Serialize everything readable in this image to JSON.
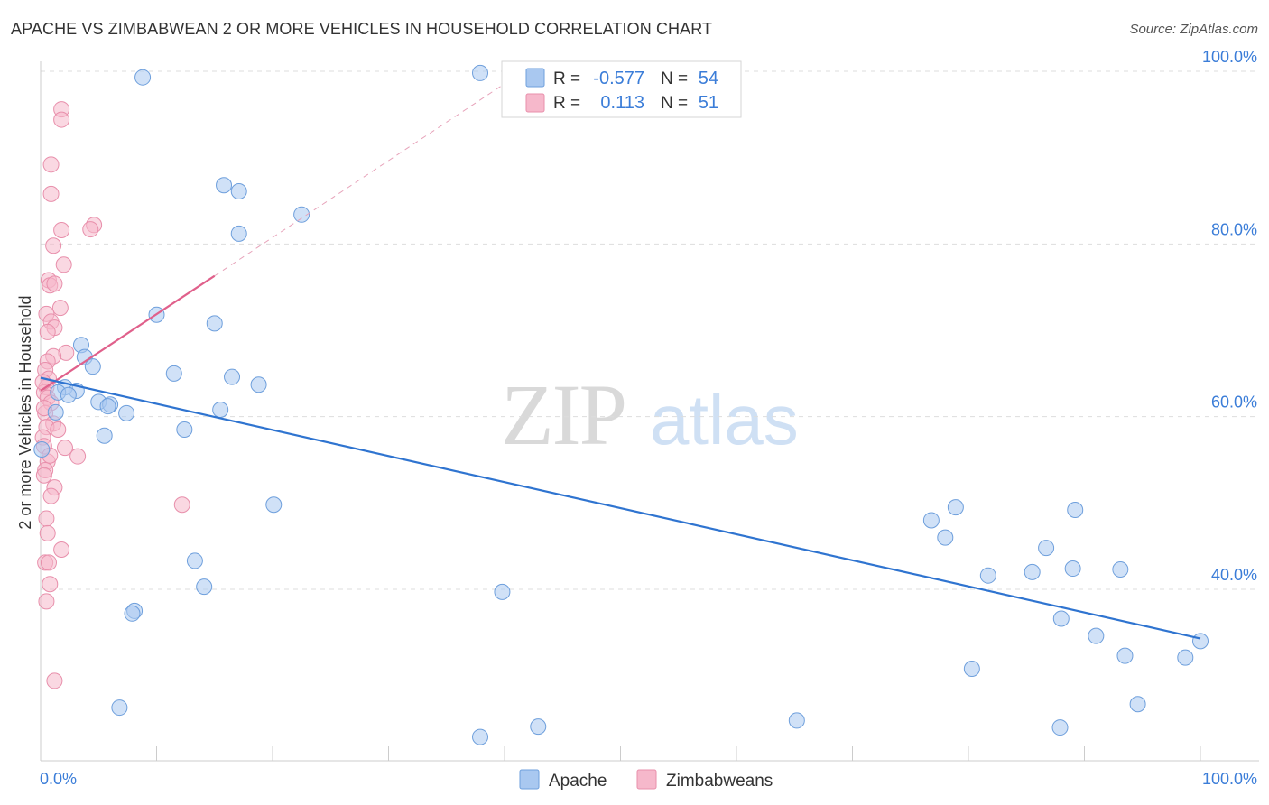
{
  "chart_data": {
    "type": "scatter",
    "title": "APACHE VS ZIMBABWEAN 2 OR MORE VEHICLES IN HOUSEHOLD CORRELATION CHART",
    "source": "Source: ZipAtlas.com",
    "xlabel": "",
    "ylabel": "2 or more Vehicles in Household",
    "xlim": [
      0,
      100
    ],
    "ylim": [
      20,
      102
    ],
    "x_tick_labels": [
      "0.0%",
      "100.0%"
    ],
    "y_ticks": [
      40,
      60,
      80,
      100
    ],
    "y_tick_labels": [
      "40.0%",
      "60.0%",
      "80.0%",
      "100.0%"
    ],
    "watermark": "ZIPatlas",
    "legend": {
      "rows": [
        {
          "r_label": "R =",
          "r_value": "-0.577",
          "n_label": "N =",
          "n_value": "54"
        },
        {
          "r_label": "R =",
          "r_value": "0.113",
          "n_label": "N =",
          "n_value": "51"
        }
      ]
    },
    "colors": {
      "apache_fill": "#a9c8f0",
      "apache_stroke": "#6e9fdc",
      "apache_line": "#2f74d0",
      "zimb_fill": "#f6b8cb",
      "zimb_stroke": "#e88fab",
      "zimb_line": "#e0608b",
      "tick": "#3b7dd8"
    },
    "series": [
      {
        "name": "Apache",
        "trend": {
          "x0": 0,
          "y0": 64.5,
          "x1": 100,
          "y1": 34.3
        },
        "points": [
          [
            8.8,
            99.3
          ],
          [
            37.9,
            99.8
          ],
          [
            15.8,
            86.8
          ],
          [
            17.1,
            86.1
          ],
          [
            22.5,
            83.4
          ],
          [
            17.1,
            81.2
          ],
          [
            10,
            71.8
          ],
          [
            15,
            70.8
          ],
          [
            3.5,
            68.3
          ],
          [
            3.8,
            66.9
          ],
          [
            4.5,
            65.8
          ],
          [
            11.5,
            65.0
          ],
          [
            16.5,
            64.6
          ],
          [
            18.8,
            63.7
          ],
          [
            2.1,
            63.4
          ],
          [
            3.1,
            63.0
          ],
          [
            1.5,
            62.8
          ],
          [
            2.4,
            62.5
          ],
          [
            5.0,
            61.7
          ],
          [
            6.0,
            61.4
          ],
          [
            5.8,
            61.2
          ],
          [
            7.4,
            60.4
          ],
          [
            15.5,
            60.8
          ],
          [
            1.3,
            60.5
          ],
          [
            12.4,
            58.5
          ],
          [
            5.5,
            57.8
          ],
          [
            0.1,
            56.2
          ],
          [
            20.1,
            49.8
          ],
          [
            13.3,
            43.3
          ],
          [
            14.1,
            40.3
          ],
          [
            39.8,
            39.7
          ],
          [
            8.1,
            37.5
          ],
          [
            7.9,
            37.2
          ],
          [
            6.8,
            26.3
          ],
          [
            37.9,
            22.9
          ],
          [
            42.9,
            24.1
          ],
          [
            65.2,
            24.8
          ],
          [
            76.8,
            48.0
          ],
          [
            78.9,
            49.5
          ],
          [
            89.2,
            49.2
          ],
          [
            78.0,
            46.0
          ],
          [
            86.7,
            44.8
          ],
          [
            85.5,
            42.0
          ],
          [
            81.7,
            41.6
          ],
          [
            89.0,
            42.4
          ],
          [
            93.1,
            42.3
          ],
          [
            88.0,
            36.6
          ],
          [
            91.0,
            34.6
          ],
          [
            100.0,
            34.0
          ],
          [
            93.5,
            32.3
          ],
          [
            98.7,
            32.1
          ],
          [
            80.3,
            30.8
          ],
          [
            94.6,
            26.7
          ],
          [
            87.9,
            24.0
          ]
        ]
      },
      {
        "name": "Zimbabweans",
        "trend": {
          "x0": 0,
          "y0": 63.0,
          "x1": 15,
          "y1": 76.3
        },
        "trend_dashed": {
          "x0": 15,
          "y0": 76.3,
          "x1": 40.5,
          "y1": 99.0
        },
        "points": [
          [
            1.8,
            95.6
          ],
          [
            1.8,
            94.4
          ],
          [
            0.9,
            89.2
          ],
          [
            0.9,
            85.8
          ],
          [
            1.8,
            81.6
          ],
          [
            4.6,
            82.2
          ],
          [
            4.3,
            81.7
          ],
          [
            1.1,
            79.8
          ],
          [
            2.0,
            77.6
          ],
          [
            0.7,
            75.8
          ],
          [
            0.8,
            75.2
          ],
          [
            1.2,
            75.4
          ],
          [
            1.7,
            72.6
          ],
          [
            0.5,
            71.9
          ],
          [
            0.9,
            71.0
          ],
          [
            1.2,
            70.3
          ],
          [
            0.6,
            69.8
          ],
          [
            2.2,
            67.4
          ],
          [
            1.1,
            67.0
          ],
          [
            0.6,
            66.4
          ],
          [
            0.4,
            65.4
          ],
          [
            0.7,
            64.4
          ],
          [
            0.5,
            63.4
          ],
          [
            0.3,
            62.8
          ],
          [
            0.6,
            62.2
          ],
          [
            0.9,
            61.6
          ],
          [
            0.4,
            60.4
          ],
          [
            1.1,
            59.2
          ],
          [
            0.5,
            58.8
          ],
          [
            0.2,
            57.6
          ],
          [
            0.3,
            56.6
          ],
          [
            2.1,
            56.4
          ],
          [
            3.2,
            55.4
          ],
          [
            0.6,
            54.8
          ],
          [
            0.4,
            53.8
          ],
          [
            0.3,
            53.2
          ],
          [
            1.2,
            51.8
          ],
          [
            0.9,
            50.8
          ],
          [
            12.2,
            49.8
          ],
          [
            0.5,
            48.2
          ],
          [
            1.8,
            44.6
          ],
          [
            0.4,
            43.1
          ],
          [
            0.7,
            43.1
          ],
          [
            0.8,
            40.6
          ],
          [
            0.5,
            38.6
          ],
          [
            1.2,
            29.4
          ],
          [
            0.2,
            64.0
          ],
          [
            0.3,
            61.0
          ],
          [
            1.5,
            58.5
          ],
          [
            0.8,
            55.5
          ],
          [
            0.6,
            46.5
          ]
        ]
      }
    ]
  }
}
